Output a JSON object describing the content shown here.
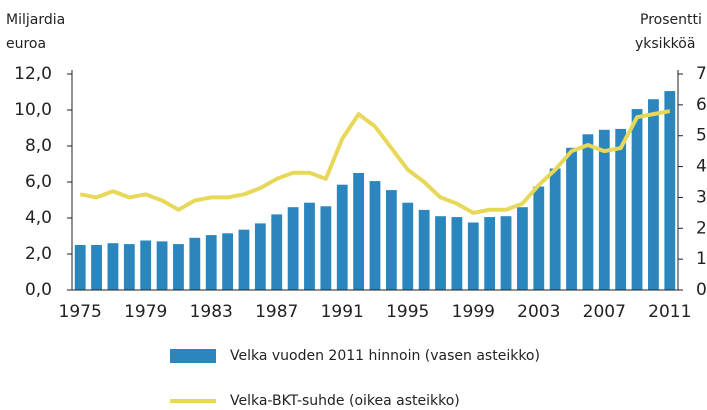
{
  "chart_data": {
    "type": "bar",
    "y_label": [
      "Miljardia",
      "euroa"
    ],
    "y2_label": [
      "Prosentti",
      "yksikköä"
    ],
    "categories": [
      "1975",
      "1976",
      "1977",
      "1978",
      "1979",
      "1980",
      "1981",
      "1982",
      "1983",
      "1984",
      "1985",
      "1986",
      "1987",
      "1988",
      "1989",
      "1990",
      "1991",
      "1992",
      "1993",
      "1994",
      "1995",
      "1996",
      "1997",
      "1998",
      "1999",
      "2000",
      "2001",
      "2002",
      "2003",
      "2004",
      "2005",
      "2006",
      "2007",
      "2008",
      "2009",
      "2010",
      "2011"
    ],
    "xtick_every": 4,
    "series": [
      {
        "name": "Velka vuoden 2011 hinnoin (vasen asteikko)",
        "type": "bar",
        "color": "#2a86bc",
        "values": [
          2.5,
          2.5,
          2.6,
          2.55,
          2.75,
          2.7,
          2.55,
          2.9,
          3.05,
          3.15,
          3.35,
          3.7,
          4.2,
          4.6,
          4.85,
          4.65,
          5.85,
          6.5,
          6.05,
          5.55,
          4.85,
          4.45,
          4.1,
          4.05,
          3.75,
          4.05,
          4.1,
          4.6,
          5.75,
          6.75,
          7.9,
          8.65,
          8.9,
          8.95,
          10.05,
          10.6,
          11.05
        ]
      },
      {
        "name": "Velka-BKT-suhde (oikea asteikko)",
        "type": "line",
        "axis": "y2",
        "color": "#e8d85a",
        "values": [
          3.1,
          3.0,
          3.2,
          3.0,
          3.1,
          2.9,
          2.6,
          2.9,
          3.0,
          3.0,
          3.1,
          3.3,
          3.6,
          3.8,
          3.8,
          3.6,
          4.9,
          5.7,
          5.3,
          4.6,
          3.9,
          3.5,
          3.0,
          2.8,
          2.5,
          2.6,
          2.6,
          2.8,
          3.4,
          3.9,
          4.5,
          4.7,
          4.5,
          4.6,
          5.6,
          5.7,
          5.8
        ]
      }
    ],
    "ylim": [
      0,
      12
    ],
    "yticks": [
      {
        "value": 0,
        "label": "0,0"
      },
      {
        "value": 2,
        "label": "2,0"
      },
      {
        "value": 4,
        "label": "4,0"
      },
      {
        "value": 6,
        "label": "6,0"
      },
      {
        "value": 8,
        "label": "8,0"
      },
      {
        "value": 10,
        "label": "10,0"
      },
      {
        "value": 12,
        "label": "12,0"
      }
    ],
    "y2lim": [
      0,
      7
    ],
    "y2ticks": [
      0,
      1,
      2,
      3,
      4,
      5,
      6,
      7
    ],
    "grid": false,
    "legend": "bottom"
  }
}
